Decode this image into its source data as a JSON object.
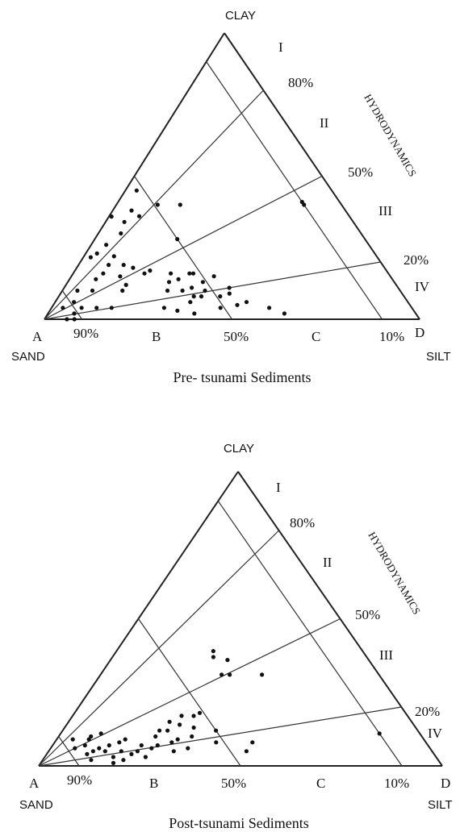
{
  "panels": [
    {
      "id": "pre",
      "vertices": {
        "top": "CLAY",
        "left_letter": "A",
        "left_name": "SAND",
        "right_letter": "D",
        "right_name": "SILT"
      },
      "axis_title": "HYDRODYNAMICS",
      "base_ticks": [
        "90%",
        "B",
        "50%",
        "C",
        "10%"
      ],
      "side_percents": [
        "80%",
        "50%",
        "20%"
      ],
      "zones": [
        "I",
        "II",
        "III",
        "IV"
      ],
      "caption": "Pre- tsunami Sediments",
      "points": [
        [
          0.64,
          0.3
        ],
        [
          0.7,
          0.22
        ],
        [
          0.69,
          0.19
        ],
        [
          0.79,
          0.14
        ],
        [
          0.78,
          0.25
        ],
        [
          0.74,
          0.23
        ],
        [
          0.73,
          0.19
        ],
        [
          0.72,
          0.15
        ],
        [
          0.7,
          0.26
        ],
        [
          0.67,
          0.18
        ],
        [
          0.72,
          0.12
        ],
        [
          0.76,
          0.16
        ],
        [
          0.74,
          0.1
        ],
        [
          0.82,
          0.1
        ],
        [
          0.86,
          0.1
        ],
        [
          0.8,
          0.04
        ],
        [
          0.84,
          0.04
        ],
        [
          0.88,
          0.04
        ],
        [
          0.89,
          0.06
        ],
        [
          0.93,
          0.04
        ],
        [
          0.91,
          0.02
        ],
        [
          0.94,
          0.0
        ],
        [
          0.92,
          0.0
        ],
        [
          0.52,
          0.45
        ],
        [
          0.57,
          0.38
        ],
        [
          0.64,
          0.37
        ],
        [
          0.61,
          0.34
        ],
        [
          0.56,
          0.36
        ],
        [
          0.49,
          0.4
        ],
        [
          0.43,
          0.4
        ],
        [
          0.5,
          0.28
        ],
        [
          0.1,
          0.4
        ],
        [
          0.1,
          0.41
        ],
        [
          0.63,
          0.17
        ],
        [
          0.65,
          0.16
        ],
        [
          0.62,
          0.1
        ],
        [
          0.6,
          0.13
        ],
        [
          0.58,
          0.16
        ],
        [
          0.57,
          0.14
        ],
        [
          0.58,
          0.1
        ],
        [
          0.55,
          0.11
        ],
        [
          0.51,
          0.13
        ],
        [
          0.52,
          0.16
        ],
        [
          0.53,
          0.16
        ],
        [
          0.52,
          0.1
        ],
        [
          0.47,
          0.15
        ],
        [
          0.45,
          0.11
        ],
        [
          0.46,
          0.09
        ],
        [
          0.49,
          0.08
        ],
        [
          0.54,
          0.08
        ],
        [
          0.56,
          0.08
        ],
        [
          0.58,
          0.06
        ],
        [
          0.63,
          0.03
        ],
        [
          0.66,
          0.04
        ],
        [
          0.59,
          0.02
        ],
        [
          0.51,
          0.04
        ],
        [
          0.46,
          0.05
        ],
        [
          0.43,
          0.06
        ],
        [
          0.38,
          0.04
        ],
        [
          0.35,
          0.02
        ]
      ]
    },
    {
      "id": "post",
      "vertices": {
        "top": "CLAY",
        "left_letter": "A",
        "left_name": "SAND",
        "right_letter": "D",
        "right_name": "SILT"
      },
      "axis_title": "HYDRODYNAMICS",
      "base_ticks": [
        "90%",
        "B",
        "50%",
        "C",
        "10%"
      ],
      "side_percents": [
        "80%",
        "50%",
        "20%"
      ],
      "zones": [
        "I",
        "II",
        "III",
        "IV"
      ],
      "caption": "Post-tsunami Sediments",
      "points": [
        [
          0.76,
          0.08
        ],
        [
          0.79,
          0.07
        ],
        [
          0.82,
          0.1
        ],
        [
          0.79,
          0.11
        ],
        [
          0.81,
          0.05
        ],
        [
          0.84,
          0.05
        ],
        [
          0.83,
          0.09
        ],
        [
          0.85,
          0.07
        ],
        [
          0.8,
          0.03
        ],
        [
          0.82,
          0.06
        ],
        [
          0.86,
          0.04
        ],
        [
          0.81,
          0.01
        ],
        [
          0.78,
          0.02
        ],
        [
          0.77,
          0.05
        ],
        [
          0.75,
          0.04
        ],
        [
          0.87,
          0.09
        ],
        [
          0.88,
          0.06
        ],
        [
          0.74,
          0.09
        ],
        [
          0.73,
          0.05
        ],
        [
          0.71,
          0.07
        ],
        [
          0.72,
          0.03
        ],
        [
          0.69,
          0.06
        ],
        [
          0.86,
          0.02
        ],
        [
          0.67,
          0.07
        ],
        [
          0.66,
          0.1
        ],
        [
          0.64,
          0.12
        ],
        [
          0.62,
          0.12
        ],
        [
          0.61,
          0.09
        ],
        [
          0.6,
          0.06
        ],
        [
          0.58,
          0.14
        ],
        [
          0.56,
          0.17
        ],
        [
          0.6,
          0.15
        ],
        [
          0.63,
          0.08
        ],
        [
          0.64,
          0.05
        ],
        [
          0.55,
          0.13
        ],
        [
          0.57,
          0.1
        ],
        [
          0.53,
          0.17
        ],
        [
          0.51,
          0.18
        ],
        [
          0.5,
          0.12
        ],
        [
          0.52,
          0.08
        ],
        [
          0.46,
          0.05
        ],
        [
          0.43,
          0.08
        ],
        [
          0.38,
          0.37
        ],
        [
          0.37,
          0.39
        ],
        [
          0.35,
          0.36
        ],
        [
          0.39,
          0.31
        ],
        [
          0.37,
          0.31
        ],
        [
          0.29,
          0.31
        ],
        [
          0.1,
          0.11
        ]
      ]
    }
  ]
}
